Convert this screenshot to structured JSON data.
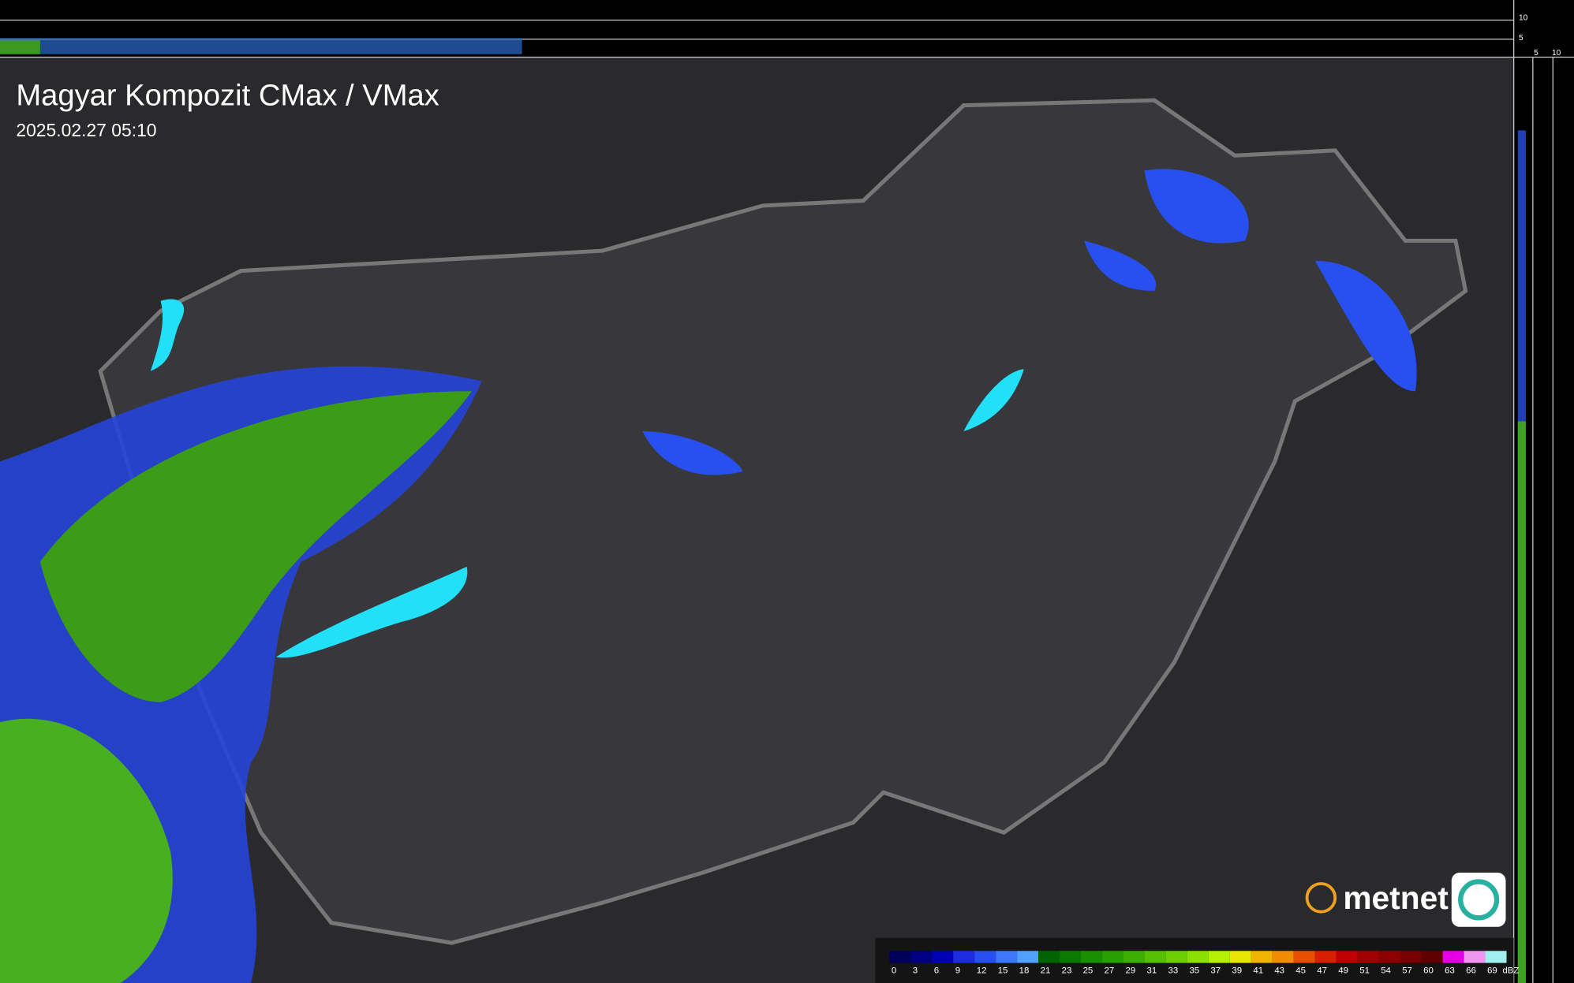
{
  "header": {
    "title": "Magyar Kompozit CMax / VMax",
    "timestamp": "2025.02.27 05:10"
  },
  "side_scale": {
    "vertical": [
      "10",
      "5"
    ],
    "horizontal": [
      "5",
      "10"
    ]
  },
  "logo": {
    "text": "metnet"
  },
  "legend": {
    "unit": "dBZ",
    "stops": [
      0,
      3,
      6,
      9,
      12,
      15,
      18,
      21,
      23,
      25,
      27,
      29,
      31,
      33,
      35,
      37,
      39,
      41,
      43,
      45,
      47,
      49,
      51,
      54,
      57,
      60,
      63,
      66,
      69
    ],
    "colors": [
      "#00005a",
      "#000080",
      "#0000b4",
      "#1c2ce0",
      "#2850f0",
      "#3c78ff",
      "#50a0ff",
      "#006400",
      "#0a7a00",
      "#189000",
      "#28a000",
      "#3cb000",
      "#54c000",
      "#6cd000",
      "#8ce000",
      "#b4f000",
      "#e6e600",
      "#f0b400",
      "#f08c00",
      "#e85000",
      "#d82000",
      "#c00000",
      "#a00000",
      "#8c0000",
      "#780000",
      "#600000",
      "#e600e6",
      "#f096f0",
      "#a0f0f0"
    ]
  }
}
